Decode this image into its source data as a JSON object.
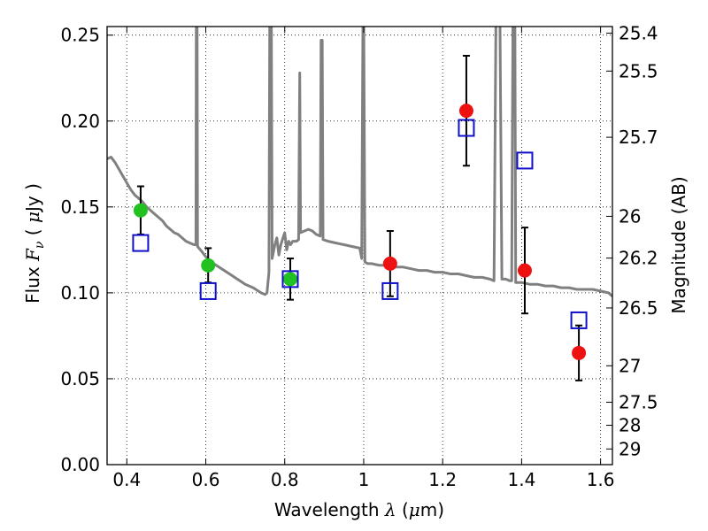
{
  "chart_data": {
    "type": "scatter",
    "xlabel": {
      "prefix": "Wavelength  ",
      "sym": "λ",
      "mid": " (",
      "unit_sym": "μ",
      "suffix": "m)"
    },
    "ylabel": {
      "prefix": "Flux  ",
      "sym": "F",
      "sub": "ν",
      "mid": "  ( ",
      "unit_sym": "μ",
      "suffix": "Jy )"
    },
    "y2label": "Magnitude (AB)",
    "xlim": [
      0.35,
      1.63
    ],
    "ylim": [
      0.0,
      0.255
    ],
    "grid": true,
    "grid_style": "dotted",
    "x_ticks": [
      {
        "v": 0.4,
        "label": "0.4"
      },
      {
        "v": 0.6,
        "label": "0.6"
      },
      {
        "v": 0.8,
        "label": "0.8"
      },
      {
        "v": 1.0,
        "label": "1"
      },
      {
        "v": 1.2,
        "label": "1.2"
      },
      {
        "v": 1.4,
        "label": "1.4"
      },
      {
        "v": 1.6,
        "label": "1.6"
      }
    ],
    "y_ticks": [
      {
        "v": 0.0,
        "label": "0.00"
      },
      {
        "v": 0.05,
        "label": "0.05"
      },
      {
        "v": 0.1,
        "label": "0.10"
      },
      {
        "v": 0.15,
        "label": "0.15"
      },
      {
        "v": 0.2,
        "label": "0.20"
      },
      {
        "v": 0.25,
        "label": "0.25"
      }
    ],
    "mag_ticks": [
      {
        "v": 25.4,
        "label": "25.4"
      },
      {
        "v": 25.5,
        "label": "25.5"
      },
      {
        "v": 25.7,
        "label": "25.7"
      },
      {
        "v": 26,
        "label": "26"
      },
      {
        "v": 26.2,
        "label": "26.2"
      },
      {
        "v": 26.5,
        "label": "26.5"
      },
      {
        "v": 27,
        "label": "27"
      },
      {
        "v": 27.5,
        "label": "27.5"
      },
      {
        "v": 28,
        "label": "28"
      },
      {
        "v": 29,
        "label": "29"
      }
    ],
    "model_color": "#808080",
    "model_spectrum": [
      [
        0.35,
        0.178
      ],
      [
        0.36,
        0.179
      ],
      [
        0.37,
        0.176
      ],
      [
        0.38,
        0.172
      ],
      [
        0.39,
        0.168
      ],
      [
        0.4,
        0.164
      ],
      [
        0.41,
        0.16
      ],
      [
        0.42,
        0.157
      ],
      [
        0.43,
        0.155
      ],
      [
        0.44,
        0.153
      ],
      [
        0.45,
        0.15
      ],
      [
        0.46,
        0.148
      ],
      [
        0.47,
        0.146
      ],
      [
        0.48,
        0.144
      ],
      [
        0.49,
        0.142
      ],
      [
        0.5,
        0.139
      ],
      [
        0.51,
        0.137
      ],
      [
        0.52,
        0.135
      ],
      [
        0.53,
        0.134
      ],
      [
        0.54,
        0.132
      ],
      [
        0.55,
        0.13
      ],
      [
        0.56,
        0.129
      ],
      [
        0.57,
        0.128
      ],
      [
        0.575,
        0.128
      ],
      [
        0.576,
        0.26
      ],
      [
        0.578,
        0.26
      ],
      [
        0.579,
        0.127
      ],
      [
        0.59,
        0.124
      ],
      [
        0.6,
        0.121
      ],
      [
        0.62,
        0.117
      ],
      [
        0.64,
        0.114
      ],
      [
        0.66,
        0.111
      ],
      [
        0.68,
        0.108
      ],
      [
        0.7,
        0.105
      ],
      [
        0.72,
        0.103
      ],
      [
        0.74,
        0.1
      ],
      [
        0.75,
        0.099
      ],
      [
        0.755,
        0.1
      ],
      [
        0.76,
        0.112
      ],
      [
        0.762,
        0.26
      ],
      [
        0.766,
        0.26
      ],
      [
        0.768,
        0.12
      ],
      [
        0.775,
        0.128
      ],
      [
        0.78,
        0.132
      ],
      [
        0.785,
        0.122
      ],
      [
        0.79,
        0.128
      ],
      [
        0.8,
        0.135
      ],
      [
        0.805,
        0.125
      ],
      [
        0.81,
        0.13
      ],
      [
        0.815,
        0.128
      ],
      [
        0.82,
        0.13
      ],
      [
        0.83,
        0.13
      ],
      [
        0.835,
        0.131
      ],
      [
        0.838,
        0.228
      ],
      [
        0.84,
        0.135
      ],
      [
        0.85,
        0.136
      ],
      [
        0.86,
        0.137
      ],
      [
        0.87,
        0.136
      ],
      [
        0.88,
        0.134
      ],
      [
        0.89,
        0.133
      ],
      [
        0.892,
        0.247
      ],
      [
        0.895,
        0.247
      ],
      [
        0.897,
        0.131
      ],
      [
        0.91,
        0.13
      ],
      [
        0.93,
        0.129
      ],
      [
        0.95,
        0.128
      ],
      [
        0.97,
        0.127
      ],
      [
        0.99,
        0.126
      ],
      [
        0.995,
        0.12
      ],
      [
        0.998,
        0.26
      ],
      [
        1.0,
        0.26
      ],
      [
        1.003,
        0.118
      ],
      [
        1.01,
        0.117
      ],
      [
        1.02,
        0.117
      ],
      [
        1.04,
        0.116
      ],
      [
        1.06,
        0.116
      ],
      [
        1.08,
        0.115
      ],
      [
        1.1,
        0.115
      ],
      [
        1.12,
        0.114
      ],
      [
        1.14,
        0.113
      ],
      [
        1.16,
        0.113
      ],
      [
        1.18,
        0.112
      ],
      [
        1.2,
        0.112
      ],
      [
        1.22,
        0.111
      ],
      [
        1.24,
        0.111
      ],
      [
        1.26,
        0.11
      ],
      [
        1.28,
        0.109
      ],
      [
        1.3,
        0.109
      ],
      [
        1.32,
        0.108
      ],
      [
        1.33,
        0.107
      ],
      [
        1.335,
        0.26
      ],
      [
        1.345,
        0.26
      ],
      [
        1.35,
        0.108
      ],
      [
        1.36,
        0.108
      ],
      [
        1.37,
        0.107
      ],
      [
        1.375,
        0.107
      ],
      [
        1.378,
        0.26
      ],
      [
        1.383,
        0.26
      ],
      [
        1.385,
        0.106
      ],
      [
        1.4,
        0.106
      ],
      [
        1.42,
        0.105
      ],
      [
        1.44,
        0.105
      ],
      [
        1.46,
        0.104
      ],
      [
        1.48,
        0.104
      ],
      [
        1.5,
        0.103
      ],
      [
        1.52,
        0.103
      ],
      [
        1.54,
        0.102
      ],
      [
        1.56,
        0.102
      ],
      [
        1.58,
        0.102
      ],
      [
        1.6,
        0.101
      ],
      [
        1.62,
        0.1
      ],
      [
        1.63,
        0.098
      ]
    ],
    "series": [
      {
        "marker": "circle",
        "color": "#21c121",
        "points": [
          {
            "x": 0.435,
            "y": 0.148,
            "err": 0.014
          },
          {
            "x": 0.606,
            "y": 0.116,
            "err": 0.01
          },
          {
            "x": 0.814,
            "y": 0.108,
            "err": 0.012
          }
        ]
      },
      {
        "marker": "circle",
        "color": "#ee1111",
        "points": [
          {
            "x": 1.067,
            "y": 0.117,
            "err": 0.019
          },
          {
            "x": 1.26,
            "y": 0.206,
            "err": 0.032
          },
          {
            "x": 1.408,
            "y": 0.113,
            "err": 0.025
          },
          {
            "x": 1.545,
            "y": 0.065,
            "err": 0.016
          }
        ]
      },
      {
        "marker": "square",
        "color": "#1010c8",
        "points": [
          {
            "x": 0.435,
            "y": 0.129
          },
          {
            "x": 0.606,
            "y": 0.101
          },
          {
            "x": 0.814,
            "y": 0.108
          },
          {
            "x": 1.067,
            "y": 0.101
          },
          {
            "x": 1.26,
            "y": 0.196
          },
          {
            "x": 1.408,
            "y": 0.177
          },
          {
            "x": 1.545,
            "y": 0.084
          }
        ]
      }
    ]
  }
}
